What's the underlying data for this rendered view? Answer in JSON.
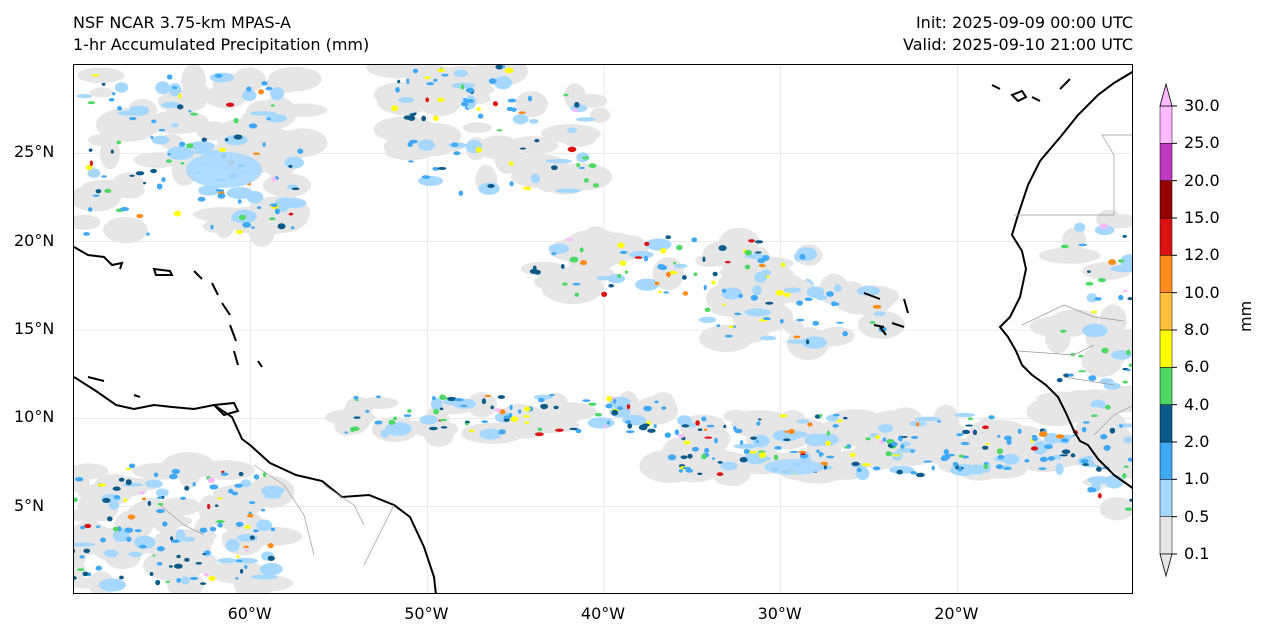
{
  "header": {
    "model": "NSF NCAR 3.75-km MPAS-A",
    "field": "1-hr Accumulated Precipitation (mm)",
    "init": "Init: 2025-09-09 00:00 UTC",
    "valid": "Valid: 2025-09-10 21:00 UTC"
  },
  "map": {
    "lon_range": [
      -70,
      -10
    ],
    "lat_range": [
      0,
      30
    ],
    "lat_ticks": [
      {
        "value": 25,
        "label": "25°N"
      },
      {
        "value": 20,
        "label": "20°N"
      },
      {
        "value": 15,
        "label": "15°N"
      },
      {
        "value": 10,
        "label": "10°N"
      },
      {
        "value": 5,
        "label": "5°N"
      }
    ],
    "lon_ticks": [
      {
        "value": -60,
        "label": "60°W"
      },
      {
        "value": -50,
        "label": "50°W"
      },
      {
        "value": -40,
        "label": "40°W"
      },
      {
        "value": -30,
        "label": "30°W"
      },
      {
        "value": -20,
        "label": "20°W"
      }
    ]
  },
  "colorbar": {
    "unit": "mm",
    "levels": [
      "0.1",
      "0.5",
      "1.0",
      "2.0",
      "4.0",
      "6.0",
      "8.0",
      "10.0",
      "12.0",
      "15.0",
      "20.0",
      "25.0",
      "30.0"
    ],
    "colors": [
      "#e6e6e6",
      "#a6d8ff",
      "#3fa9f5",
      "#0a5a8a",
      "#4cd964",
      "#ffff00",
      "#ffc03a",
      "#ff8c1a",
      "#dd1111",
      "#990000",
      "#c03ac0",
      "#ffbaff"
    ]
  }
}
